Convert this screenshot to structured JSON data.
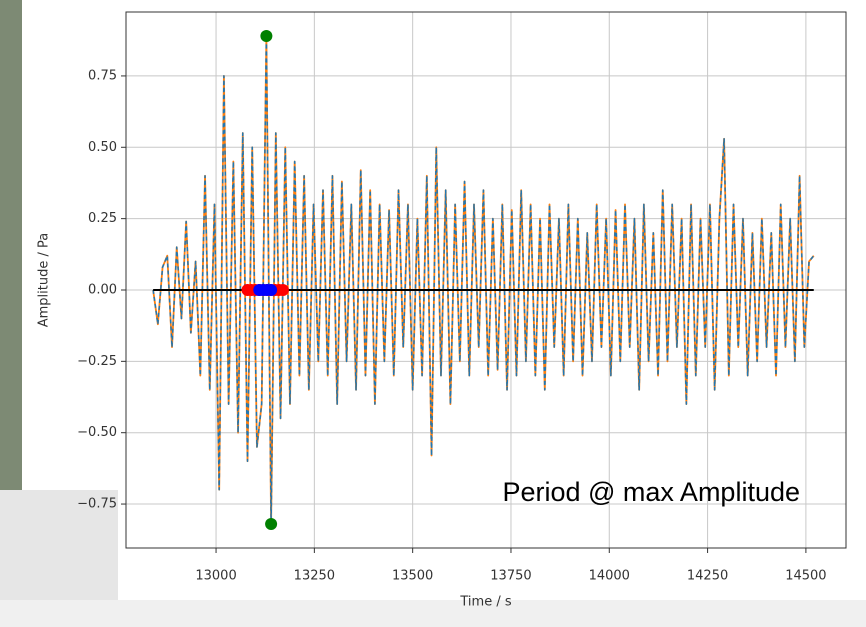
{
  "chart_data": {
    "type": "line",
    "xlabel": "Time / s",
    "ylabel": "Amplitude / Pa",
    "annotation": "Period @ max Amplitude",
    "xlim": [
      12771,
      14602
    ],
    "ylim": [
      -0.904,
      0.974
    ],
    "xticks": [
      13000,
      13250,
      13500,
      13750,
      14000,
      14250,
      14500
    ],
    "yticks": [
      {
        "value": -0.75,
        "label": "−0.75"
      },
      {
        "value": -0.5,
        "label": "−0.50"
      },
      {
        "value": -0.25,
        "label": "−0.25"
      },
      {
        "value": 0,
        "label": "0.00"
      },
      0.25,
      {
        "value": 0.5,
        "label": "0.50"
      },
      0.75
    ],
    "grid": true,
    "series": [
      {
        "color": "#ff7f0e",
        "style": "line",
        "x": [
          12840,
          12852,
          12864,
          12876,
          12888,
          12900,
          12912,
          12924,
          12936,
          12948,
          12960,
          12972,
          12984,
          12996,
          13008,
          13020,
          13032,
          13044,
          13056,
          13068,
          13080,
          13092,
          13104,
          13116,
          13128,
          13140,
          13152,
          13164,
          13176,
          13188,
          13200,
          13212,
          13224,
          13236,
          13248,
          13260,
          13272,
          13284,
          13296,
          13308,
          13320,
          13332,
          13344,
          13356,
          13368,
          13380,
          13392,
          13404,
          13416,
          13428,
          13440,
          13452,
          13464,
          13476,
          13488,
          13500,
          13512,
          13524,
          13536,
          13548,
          13560,
          13572,
          13584,
          13596,
          13608,
          13620,
          13632,
          13644,
          13656,
          13668,
          13680,
          13692,
          13704,
          13716,
          13728,
          13740,
          13752,
          13764,
          13776,
          13788,
          13800,
          13812,
          13824,
          13836,
          13848,
          13860,
          13872,
          13884,
          13896,
          13908,
          13920,
          13932,
          13944,
          13956,
          13968,
          13980,
          13992,
          14004,
          14016,
          14028,
          14040,
          14052,
          14064,
          14076,
          14088,
          14100,
          14112,
          14124,
          14136,
          14148,
          14160,
          14172,
          14184,
          14196,
          14208,
          14220,
          14232,
          14244,
          14256,
          14268,
          14280,
          14292,
          14304,
          14316,
          14328,
          14340,
          14352,
          14364,
          14376,
          14388,
          14400,
          14412,
          14424,
          14436,
          14448,
          14460,
          14472,
          14484,
          14496,
          14508,
          14520
        ],
        "values": [
          0.0,
          -0.12,
          0.08,
          0.12,
          -0.2,
          0.15,
          -0.1,
          0.24,
          -0.15,
          0.1,
          -0.3,
          0.4,
          -0.35,
          0.3,
          -0.7,
          0.75,
          -0.4,
          0.45,
          -0.5,
          0.55,
          -0.6,
          0.5,
          -0.55,
          -0.4,
          0.89,
          -0.82,
          0.55,
          -0.45,
          0.5,
          -0.4,
          0.45,
          -0.3,
          0.4,
          -0.35,
          0.3,
          -0.25,
          0.35,
          -0.3,
          0.4,
          -0.4,
          0.38,
          -0.25,
          0.3,
          -0.35,
          0.42,
          -0.3,
          0.35,
          -0.4,
          0.3,
          -0.25,
          0.28,
          -0.3,
          0.35,
          -0.2,
          0.3,
          -0.35,
          0.25,
          -0.3,
          0.4,
          -0.58,
          0.5,
          -0.3,
          0.35,
          -0.4,
          0.3,
          -0.25,
          0.38,
          -0.3,
          0.3,
          -0.2,
          0.35,
          -0.3,
          0.25,
          -0.28,
          0.3,
          -0.35,
          0.28,
          -0.3,
          0.35,
          -0.25,
          0.3,
          -0.3,
          0.25,
          -0.35,
          0.3,
          -0.2,
          0.25,
          -0.3,
          0.3,
          -0.25,
          0.25,
          -0.3,
          0.2,
          -0.25,
          0.3,
          -0.2,
          0.25,
          -0.3,
          0.28,
          -0.25,
          0.3,
          -0.2,
          0.25,
          -0.35,
          0.3,
          -0.25,
          0.2,
          -0.3,
          0.35,
          -0.25,
          0.3,
          -0.2,
          0.25,
          -0.4,
          0.3,
          -0.3,
          0.25,
          -0.2,
          0.3,
          -0.35,
          0.25,
          0.53,
          -0.3,
          0.3,
          -0.2,
          0.25,
          -0.3,
          0.2,
          -0.25,
          0.25,
          -0.2,
          0.2,
          -0.3,
          0.3,
          -0.2,
          0.25,
          -0.25,
          0.4,
          -0.2,
          0.1,
          0.12
        ]
      },
      {
        "color": "#1f77b4",
        "style": "dashed",
        "x": [
          12840,
          12852,
          12864,
          12876,
          12888,
          12900,
          12912,
          12924,
          12936,
          12948,
          12960,
          12972,
          12984,
          12996,
          13008,
          13020,
          13032,
          13044,
          13056,
          13068,
          13080,
          13092,
          13104,
          13116,
          13128,
          13140,
          13152,
          13164,
          13176,
          13188,
          13200,
          13212,
          13224,
          13236,
          13248,
          13260,
          13272,
          13284,
          13296,
          13308,
          13320,
          13332,
          13344,
          13356,
          13368,
          13380,
          13392,
          13404,
          13416,
          13428,
          13440,
          13452,
          13464,
          13476,
          13488,
          13500,
          13512,
          13524,
          13536,
          13548,
          13560,
          13572,
          13584,
          13596,
          13608,
          13620,
          13632,
          13644,
          13656,
          13668,
          13680,
          13692,
          13704,
          13716,
          13728,
          13740,
          13752,
          13764,
          13776,
          13788,
          13800,
          13812,
          13824,
          13836,
          13848,
          13860,
          13872,
          13884,
          13896,
          13908,
          13920,
          13932,
          13944,
          13956,
          13968,
          13980,
          13992,
          14004,
          14016,
          14028,
          14040,
          14052,
          14064,
          14076,
          14088,
          14100,
          14112,
          14124,
          14136,
          14148,
          14160,
          14172,
          14184,
          14196,
          14208,
          14220,
          14232,
          14244,
          14256,
          14268,
          14280,
          14292,
          14304,
          14316,
          14328,
          14340,
          14352,
          14364,
          14376,
          14388,
          14400,
          14412,
          14424,
          14436,
          14448,
          14460,
          14472,
          14484,
          14496,
          14508,
          14520
        ],
        "values": [
          0.0,
          -0.12,
          0.08,
          0.12,
          -0.2,
          0.15,
          -0.1,
          0.24,
          -0.15,
          0.1,
          -0.3,
          0.4,
          -0.35,
          0.3,
          -0.7,
          0.75,
          -0.4,
          0.45,
          -0.5,
          0.55,
          -0.6,
          0.5,
          -0.55,
          -0.4,
          0.89,
          -0.82,
          0.55,
          -0.45,
          0.5,
          -0.4,
          0.45,
          -0.3,
          0.4,
          -0.35,
          0.3,
          -0.25,
          0.35,
          -0.3,
          0.4,
          -0.4,
          0.38,
          -0.25,
          0.3,
          -0.35,
          0.42,
          -0.3,
          0.35,
          -0.4,
          0.3,
          -0.25,
          0.28,
          -0.3,
          0.35,
          -0.2,
          0.3,
          -0.35,
          0.25,
          -0.3,
          0.4,
          -0.58,
          0.5,
          -0.3,
          0.35,
          -0.4,
          0.3,
          -0.25,
          0.38,
          -0.3,
          0.3,
          -0.2,
          0.35,
          -0.3,
          0.25,
          -0.28,
          0.3,
          -0.35,
          0.28,
          -0.3,
          0.35,
          -0.25,
          0.3,
          -0.3,
          0.25,
          -0.35,
          0.3,
          -0.2,
          0.25,
          -0.3,
          0.3,
          -0.25,
          0.25,
          -0.3,
          0.2,
          -0.25,
          0.3,
          -0.2,
          0.25,
          -0.3,
          0.28,
          -0.25,
          0.3,
          -0.2,
          0.25,
          -0.35,
          0.3,
          -0.25,
          0.2,
          -0.3,
          0.35,
          -0.25,
          0.3,
          -0.2,
          0.25,
          -0.4,
          0.3,
          -0.3,
          0.25,
          -0.2,
          0.3,
          -0.35,
          0.25,
          0.53,
          -0.3,
          0.3,
          -0.2,
          0.25,
          -0.3,
          0.2,
          -0.25,
          0.25,
          -0.2,
          0.2,
          -0.3,
          0.3,
          -0.2,
          0.25,
          -0.25,
          0.4,
          -0.2,
          0.1,
          0.12
        ]
      },
      {
        "color": "#000000",
        "style": "line",
        "x": [
          12840,
          14520
        ],
        "values": [
          0,
          0
        ]
      },
      {
        "color": "#ff0000",
        "style": "points",
        "x": [
          13080,
          13090,
          13100,
          13110,
          13120,
          13130,
          13140,
          13150,
          13160,
          13170
        ],
        "values": [
          0,
          0,
          0,
          0,
          0,
          0,
          0,
          0,
          0,
          0
        ]
      },
      {
        "color": "#0000ff",
        "style": "points",
        "x": [
          13110,
          13120,
          13130,
          13140
        ],
        "values": [
          0,
          0,
          0,
          0
        ]
      },
      {
        "color": "#008000",
        "style": "points",
        "x": [
          13128,
          13140
        ],
        "values": [
          0.89,
          -0.82
        ]
      }
    ]
  }
}
